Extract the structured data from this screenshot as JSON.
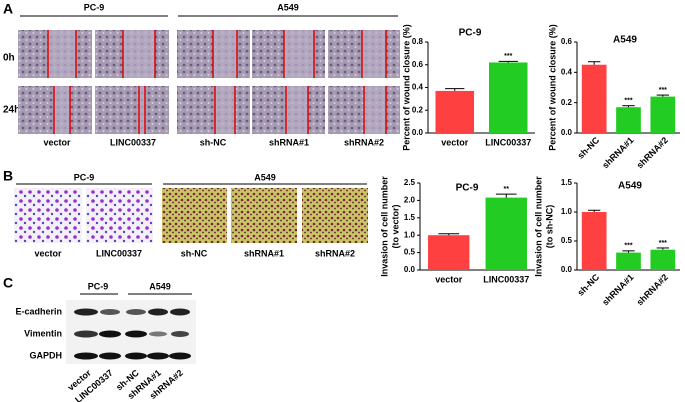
{
  "panel_labels": [
    "A",
    "B",
    "C"
  ],
  "wound_assay": {
    "groups": [
      "PC-9",
      "A549"
    ],
    "rows": [
      "0h",
      "24h"
    ],
    "columns": [
      "vector",
      "LINC00337",
      "sh-NC",
      "shRNA#1",
      "shRNA#2"
    ]
  },
  "transwell_assay": {
    "groups": [
      "PC-9",
      "A549"
    ],
    "columns": [
      "vector",
      "LINC00337",
      "sh-NC",
      "shRNA#1",
      "shRNA#2"
    ]
  },
  "western_blot": {
    "groups": [
      "PC-9",
      "A549"
    ],
    "rows": [
      "E-cadherin",
      "Vimentin",
      "GAPDH"
    ],
    "columns": [
      "vector",
      "LINC00337",
      "sh-NC",
      "shRNA#1",
      "shRNA#2"
    ]
  },
  "chart_data": [
    {
      "type": "bar",
      "title": "PC-9",
      "ylabel": [
        "Percent of wound closure (%)"
      ],
      "categories": [
        "vector",
        "LINC00337"
      ],
      "values": [
        0.37,
        0.62
      ],
      "errors": [
        0.02,
        0.01
      ],
      "colors": [
        "#ff4040",
        "#22cc22"
      ],
      "annotations": [
        {
          "category": "LINC00337",
          "text": "***"
        }
      ],
      "ylim": [
        0,
        0.8
      ],
      "yticks": [
        {
          "value": 0,
          "label": "0.0"
        },
        0.2,
        0.4,
        0.6,
        0.8
      ]
    },
    {
      "type": "bar",
      "title": "A549",
      "ylabel": [
        "Percent of wound closure (%)"
      ],
      "categories": [
        "sh-NC",
        "shRNA#1",
        "shRNA#2"
      ],
      "values": [
        0.45,
        0.17,
        0.24
      ],
      "errors": [
        0.02,
        0.01,
        0.01
      ],
      "colors": [
        "#ff4040",
        "#22cc22",
        "#22cc22"
      ],
      "annotations": [
        {
          "category": "shRNA#1",
          "text": "***"
        },
        {
          "category": "shRNA#2",
          "text": "***"
        }
      ],
      "ylim": [
        0,
        0.6
      ],
      "yticks": [
        {
          "value": 0,
          "label": "0.0"
        },
        0.2,
        0.4,
        0.6
      ]
    },
    {
      "type": "bar",
      "title": "PC-9",
      "ylabel": [
        "Invasion of cell number",
        "(to vector)"
      ],
      "categories": [
        "vector",
        "LINC00337"
      ],
      "values": [
        1.0,
        2.08
      ],
      "errors": [
        0.04,
        0.1
      ],
      "colors": [
        "#ff4040",
        "#22cc22"
      ],
      "annotations": [
        {
          "category": "LINC00337",
          "text": "**"
        }
      ],
      "ylim": [
        0,
        2.5
      ],
      "yticks": [
        {
          "value": 0,
          "label": "0.0"
        },
        0.5,
        {
          "value": 1,
          "label": "1.0"
        },
        1.5,
        {
          "value": 2,
          "label": "2.0"
        },
        2.5
      ]
    },
    {
      "type": "bar",
      "title": "A549",
      "ylabel": [
        "Invasion of cell number",
        "(to sh-NC)"
      ],
      "categories": [
        "sh-NC",
        "shRNA#1",
        "shRNA#2"
      ],
      "values": [
        1.0,
        0.3,
        0.35
      ],
      "errors": [
        0.03,
        0.03,
        0.03
      ],
      "colors": [
        "#ff4040",
        "#22cc22",
        "#22cc22"
      ],
      "annotations": [
        {
          "category": "shRNA#1",
          "text": "***"
        },
        {
          "category": "shRNA#2",
          "text": "***"
        }
      ],
      "ylim": [
        0,
        1.5
      ],
      "yticks": [
        {
          "value": 0,
          "label": "0.0"
        },
        0.5,
        {
          "value": 1,
          "label": "1.0"
        },
        1.5
      ]
    }
  ]
}
